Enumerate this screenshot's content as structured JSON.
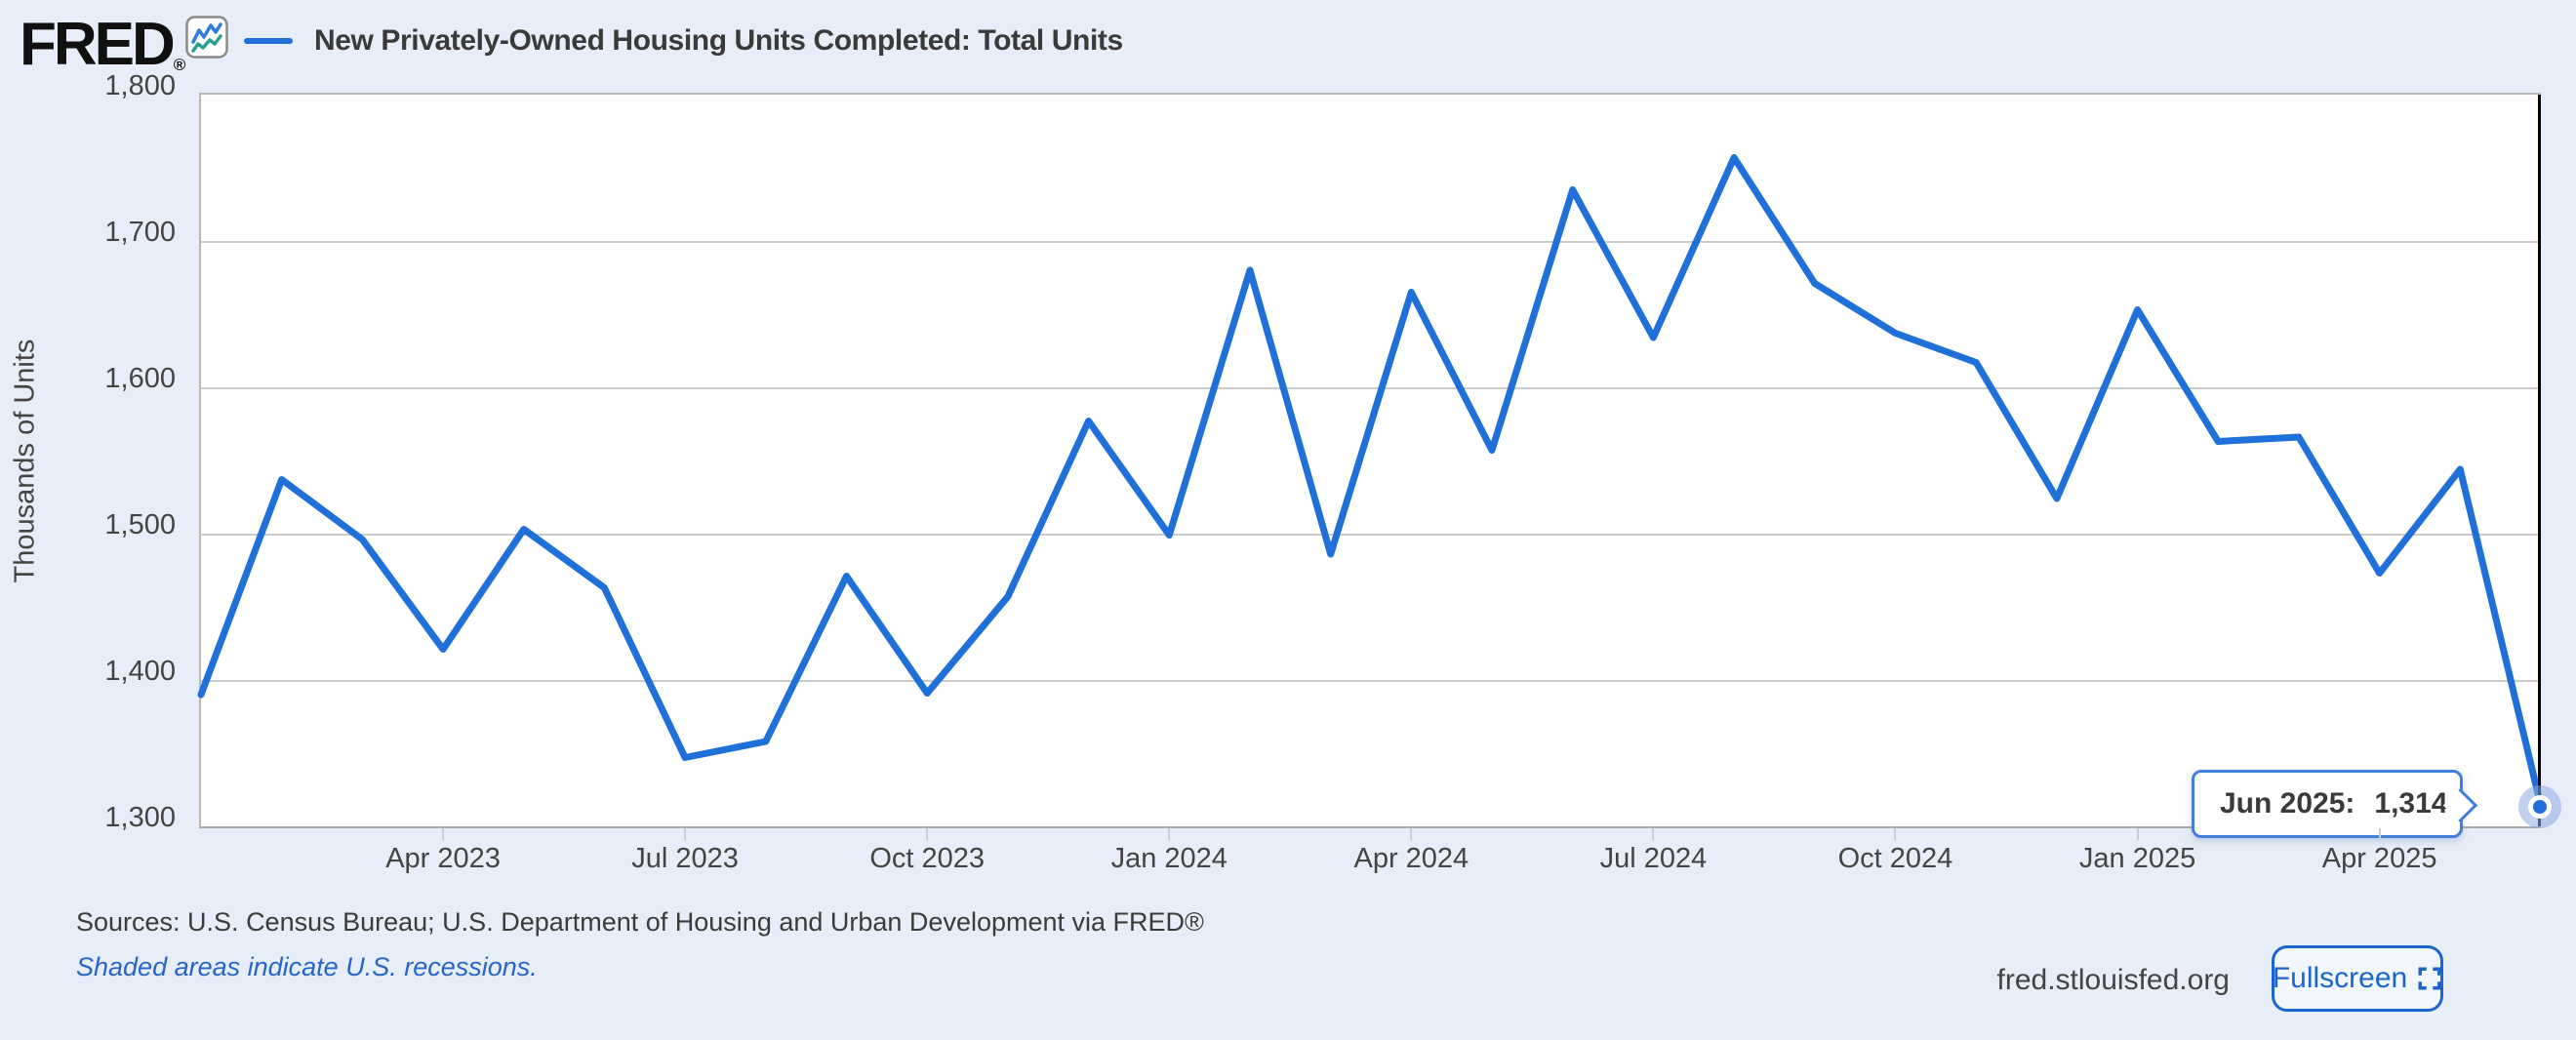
{
  "header": {
    "logo_text": "FRED",
    "registered_mark": "®",
    "legend": {
      "series_label": "New Privately-Owned Housing Units Completed: Total Units",
      "series_color": "#1f70d8"
    }
  },
  "chart_data": {
    "type": "line",
    "title": "New Privately-Owned Housing Units Completed: Total Units",
    "ylabel": "Thousands of Units",
    "ylim": [
      1300,
      1800
    ],
    "grid": true,
    "line_color": "#1f70d8",
    "ytick_labels": [
      "1,800",
      "1,700",
      "1,600",
      "1,500",
      "1,400",
      "1,300"
    ],
    "x": [
      "Jan 2023",
      "Feb 2023",
      "Mar 2023",
      "Apr 2023",
      "May 2023",
      "Jun 2023",
      "Jul 2023",
      "Aug 2023",
      "Sep 2023",
      "Oct 2023",
      "Nov 2023",
      "Dec 2023",
      "Jan 2024",
      "Feb 2024",
      "Mar 2024",
      "Apr 2024",
      "May 2024",
      "Jun 2024",
      "Jul 2024",
      "Aug 2024",
      "Sep 2024",
      "Oct 2024",
      "Nov 2024",
      "Dec 2024",
      "Jan 2025",
      "Feb 2025",
      "Mar 2025",
      "Apr 2025",
      "May 2025",
      "Jun 2025"
    ],
    "values": [
      1390,
      1537,
      1496,
      1421,
      1503,
      1463,
      1347,
      1358,
      1471,
      1391,
      1457,
      1577,
      1499,
      1680,
      1486,
      1665,
      1557,
      1735,
      1634,
      1757,
      1671,
      1637,
      1617,
      1524,
      1653,
      1563,
      1566,
      1473,
      1544,
      1314
    ],
    "xticks": {
      "indices": [
        3,
        6,
        9,
        12,
        15,
        18,
        21,
        24,
        27
      ],
      "labels": [
        "Apr 2023",
        "Jul 2023",
        "Oct 2023",
        "Jan 2024",
        "Apr 2024",
        "Jul 2024",
        "Oct 2024",
        "Jan 2025",
        "Apr 2025"
      ]
    },
    "cursor": {
      "month": "Jun 2025",
      "value": 1314
    }
  },
  "tooltip": {
    "date_label": "Jun 2025:",
    "value": "1,314"
  },
  "footer": {
    "sources": "Sources: U.S. Census Bureau; U.S. Department of Housing and Urban Development via FRED®",
    "recession_note": "Shaded areas indicate U.S. recessions.",
    "site": "fred.stlouisfed.org",
    "fullscreen_label": "Fullscreen"
  }
}
